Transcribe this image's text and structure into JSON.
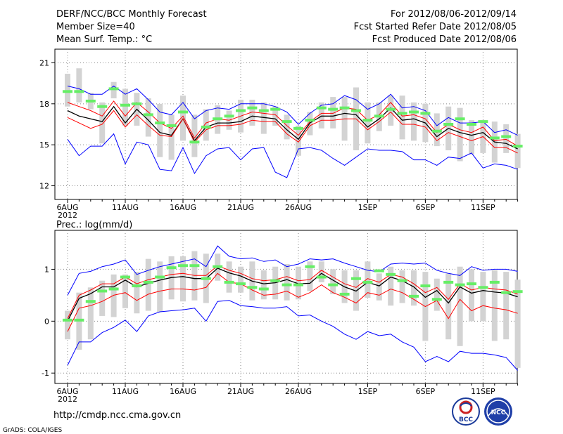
{
  "header": {
    "title": "DERF/NCC/BCC Monthly Forecast",
    "member_size": "Member Size=40",
    "variable": "Mean Surf. Temp.: °C",
    "period": "For 2012/08/06-2012/09/14",
    "refer_date": "Fcst Started Refer Date 2012/08/05",
    "produced_date": "Fcst Produced Date 2012/08/06"
  },
  "footer": {
    "url": "http://cmdp.ncc.cma.gov.cn",
    "grads": "GrADS: COLA/IGES",
    "logo_bcc": "BCC",
    "logo_ncc": "NCC"
  },
  "colors": {
    "max_min": "#0000ff",
    "mean": "#000000",
    "spread": "#ff0000",
    "box": "#d3d3d3",
    "obs": "#66ee66",
    "grid": "#8a8a8a"
  },
  "chart_data": [
    {
      "type": "line",
      "title": "Mean Surf. Temp.: °C",
      "x": [
        1,
        2,
        3,
        4,
        5,
        6,
        7,
        8,
        9,
        10,
        11,
        12,
        13,
        14,
        15,
        16,
        17,
        18,
        19,
        20,
        21,
        22,
        23,
        24,
        25,
        26,
        27,
        28,
        29,
        30,
        31,
        32,
        33,
        34,
        35,
        36,
        37,
        38,
        39,
        40
      ],
      "xtick_labels": [
        "6AUG",
        "11AUG",
        "16AUG",
        "21AUG",
        "26AUG",
        "1SEP",
        "6SEP",
        "11SEP"
      ],
      "xtick_positions": [
        1,
        6,
        11,
        16,
        21,
        27,
        32,
        37
      ],
      "year_label": "2012",
      "ylim": [
        11,
        22
      ],
      "yticks": [
        12,
        15,
        18,
        21
      ],
      "series": [
        {
          "name": "max",
          "color": "#0000ff",
          "values": [
            19.3,
            19.1,
            18.7,
            18.7,
            19.3,
            18.7,
            19.1,
            18.3,
            17.4,
            17.2,
            18.1,
            16.9,
            17.5,
            17.7,
            17.6,
            18.0,
            18.0,
            18.0,
            17.8,
            17.4,
            16.5,
            17.3,
            17.9,
            18.0,
            18.6,
            18.3,
            17.6,
            18.0,
            18.7,
            17.7,
            17.8,
            17.5,
            16.4,
            17.0,
            16.6,
            16.6,
            16.7,
            15.9,
            16.1,
            15.7
          ]
        },
        {
          "name": "upper",
          "color": "#ff0000",
          "values": [
            18.1,
            17.8,
            17.5,
            17.1,
            18.2,
            17.1,
            18.1,
            17.4,
            16.6,
            16.2,
            17.1,
            15.5,
            16.6,
            16.9,
            16.8,
            17.1,
            17.4,
            17.3,
            17.2,
            16.4,
            15.7,
            16.7,
            17.3,
            17.3,
            17.7,
            17.6,
            16.8,
            17.2,
            18.1,
            17.1,
            17.2,
            16.9,
            15.9,
            16.5,
            16.1,
            15.9,
            16.3,
            15.3,
            15.4,
            14.9
          ]
        },
        {
          "name": "mean",
          "color": "#000000",
          "values": [
            17.5,
            17.1,
            16.9,
            16.7,
            17.8,
            16.6,
            17.6,
            16.8,
            15.9,
            15.7,
            16.9,
            15.3,
            16.3,
            16.6,
            16.6,
            16.7,
            17.1,
            17.0,
            16.9,
            16.1,
            15.4,
            16.6,
            17.1,
            17.1,
            17.3,
            17.2,
            16.3,
            16.9,
            17.7,
            16.8,
            16.9,
            16.6,
            15.6,
            16.2,
            15.9,
            15.7,
            15.9,
            15.2,
            15.1,
            14.7
          ]
        },
        {
          "name": "lower",
          "color": "#ff0000",
          "values": [
            17.0,
            16.6,
            16.2,
            16.5,
            17.5,
            16.3,
            17.2,
            16.4,
            15.7,
            15.6,
            16.9,
            15.2,
            16.1,
            16.4,
            16.4,
            16.5,
            16.8,
            16.7,
            16.7,
            15.8,
            15.2,
            16.4,
            16.8,
            16.8,
            16.9,
            16.9,
            16.1,
            16.7,
            17.4,
            16.5,
            16.5,
            16.3,
            15.3,
            15.9,
            15.6,
            15.3,
            15.6,
            14.8,
            14.8,
            14.4
          ]
        },
        {
          "name": "min",
          "color": "#0000ff",
          "values": [
            15.4,
            14.2,
            14.9,
            14.9,
            15.8,
            13.6,
            15.2,
            15.0,
            13.2,
            13.1,
            14.8,
            12.9,
            14.2,
            14.7,
            14.8,
            13.9,
            14.7,
            14.8,
            13.0,
            12.6,
            14.7,
            14.8,
            14.6,
            14.0,
            13.5,
            14.1,
            14.7,
            14.6,
            14.6,
            14.5,
            13.9,
            13.9,
            13.5,
            14.1,
            14.0,
            14.4,
            13.3,
            13.6,
            13.5,
            13.2
          ]
        }
      ],
      "boxes": [
        [
          17.8,
          20.2
        ],
        [
          18.1,
          20.6
        ],
        [
          17.6,
          18.8
        ],
        [
          15.1,
          18.1
        ],
        [
          18.4,
          19.6
        ],
        [
          16.4,
          19.1
        ],
        [
          16.4,
          18.8
        ],
        [
          15.6,
          18.4
        ],
        [
          14.1,
          18.0
        ],
        [
          13.9,
          17.2
        ],
        [
          15.3,
          18.6
        ],
        [
          14.1,
          17.2
        ],
        [
          15.3,
          17.6
        ],
        [
          15.8,
          17.9
        ],
        [
          16.1,
          17.5
        ],
        [
          15.9,
          18.3
        ],
        [
          16.4,
          18.3
        ],
        [
          15.8,
          18.1
        ],
        [
          16.4,
          17.8
        ],
        [
          15.4,
          17.2
        ],
        [
          14.2,
          16.4
        ],
        [
          15.7,
          17.4
        ],
        [
          16.2,
          18.1
        ],
        [
          16.2,
          18.5
        ],
        [
          15.3,
          18.5
        ],
        [
          14.6,
          19.2
        ],
        [
          15.1,
          18.1
        ],
        [
          16.0,
          18.1
        ],
        [
          16.4,
          18.6
        ],
        [
          15.4,
          18.6
        ],
        [
          15.3,
          18.1
        ],
        [
          15.2,
          18.0
        ],
        [
          14.9,
          17.3
        ],
        [
          14.6,
          17.8
        ],
        [
          13.8,
          17.7
        ],
        [
          14.3,
          16.8
        ],
        [
          14.4,
          16.7
        ],
        [
          13.7,
          16.7
        ],
        [
          14.4,
          16.5
        ],
        [
          13.3,
          15.8
        ]
      ],
      "observed": [
        18.9,
        18.9,
        18.2,
        17.8,
        19.1,
        17.9,
        18.0,
        17.2,
        16.6,
        16.4,
        17.4,
        15.2,
        16.3,
        16.9,
        17.1,
        17.5,
        17.7,
        17.5,
        17.6,
        16.7,
        16.2,
        16.8,
        17.7,
        17.6,
        17.7,
        17.5,
        16.8,
        17.1,
        17.6,
        17.3,
        17.4,
        17.3,
        16.0,
        16.5,
        16.9,
        16.5,
        16.7,
        15.5,
        15.6,
        14.9
      ]
    },
    {
      "type": "line",
      "title": "Prec.: log(mm/d)",
      "x": [
        1,
        2,
        3,
        4,
        5,
        6,
        7,
        8,
        9,
        10,
        11,
        12,
        13,
        14,
        15,
        16,
        17,
        18,
        19,
        20,
        21,
        22,
        23,
        24,
        25,
        26,
        27,
        28,
        29,
        30,
        31,
        32,
        33,
        34,
        35,
        36,
        37,
        38,
        39,
        40
      ],
      "xtick_labels": [
        "6AUG",
        "11AUG",
        "16AUG",
        "21AUG",
        "26AUG",
        "1SEP",
        "6SEP",
        "11SEP"
      ],
      "xtick_positions": [
        1,
        6,
        11,
        16,
        21,
        27,
        32,
        37
      ],
      "year_label": "2012",
      "ylim": [
        -1.2,
        1.75
      ],
      "yticks": [
        -1,
        0,
        1
      ],
      "series": [
        {
          "name": "max",
          "color": "#0000ff",
          "values": [
            0.5,
            0.92,
            0.96,
            1.05,
            1.1,
            1.18,
            0.9,
            0.98,
            1.05,
            1.1,
            1.15,
            1.2,
            1.05,
            1.45,
            1.25,
            1.2,
            1.22,
            1.15,
            1.18,
            1.05,
            1.1,
            1.2,
            1.18,
            1.2,
            1.12,
            1.05,
            0.98,
            0.95,
            1.1,
            1.12,
            1.1,
            1.12,
            0.98,
            0.92,
            0.88,
            1.05,
            0.98,
            1.0,
            1.0,
            0.96
          ]
        },
        {
          "name": "upper",
          "color": "#ff0000",
          "values": [
            0.05,
            0.5,
            0.6,
            0.72,
            0.72,
            0.85,
            0.72,
            0.8,
            0.85,
            0.9,
            0.92,
            0.88,
            0.88,
            1.07,
            0.98,
            0.92,
            0.82,
            0.78,
            0.8,
            0.86,
            0.78,
            0.8,
            0.98,
            0.85,
            0.72,
            0.65,
            0.82,
            0.75,
            0.9,
            0.85,
            0.72,
            0.55,
            0.65,
            0.42,
            0.72,
            0.6,
            0.65,
            0.62,
            0.6,
            0.52
          ]
        },
        {
          "name": "mean",
          "color": "#000000",
          "values": [
            0.0,
            0.44,
            0.53,
            0.66,
            0.66,
            0.79,
            0.66,
            0.73,
            0.79,
            0.84,
            0.86,
            0.82,
            0.82,
            1.02,
            0.93,
            0.87,
            0.77,
            0.72,
            0.74,
            0.8,
            0.72,
            0.73,
            0.92,
            0.79,
            0.66,
            0.58,
            0.75,
            0.68,
            0.85,
            0.78,
            0.66,
            0.46,
            0.59,
            0.35,
            0.66,
            0.54,
            0.59,
            0.56,
            0.54,
            0.47
          ]
        },
        {
          "name": "lower",
          "color": "#ff0000",
          "values": [
            -0.2,
            0.25,
            0.3,
            0.38,
            0.5,
            0.55,
            0.4,
            0.52,
            0.58,
            0.62,
            0.62,
            0.6,
            0.65,
            0.92,
            0.75,
            0.72,
            0.6,
            0.5,
            0.52,
            0.58,
            0.46,
            0.55,
            0.7,
            0.55,
            0.46,
            0.35,
            0.55,
            0.5,
            0.62,
            0.55,
            0.42,
            0.28,
            0.4,
            0.05,
            0.42,
            0.2,
            0.3,
            0.25,
            0.22,
            0.15
          ]
        },
        {
          "name": "min",
          "color": "#0000ff",
          "values": [
            -0.85,
            -0.4,
            -0.4,
            -0.22,
            -0.12,
            0.02,
            -0.2,
            0.1,
            0.18,
            0.2,
            0.22,
            0.25,
            0.0,
            0.38,
            0.4,
            0.3,
            0.28,
            0.25,
            0.25,
            0.28,
            0.1,
            0.12,
            0.0,
            -0.1,
            -0.25,
            -0.35,
            -0.2,
            -0.28,
            -0.25,
            -0.4,
            -0.5,
            -0.78,
            -0.68,
            -0.78,
            -0.58,
            -0.62,
            -0.62,
            -0.65,
            -0.7,
            -0.95
          ]
        }
      ],
      "boxes": [
        [
          -0.35,
          0.2
        ],
        [
          -0.55,
          0.55
        ],
        [
          -0.35,
          0.65
        ],
        [
          0.1,
          0.78
        ],
        [
          0.08,
          0.9
        ],
        [
          0.25,
          0.9
        ],
        [
          0.15,
          0.95
        ],
        [
          0.2,
          1.2
        ],
        [
          0.18,
          1.15
        ],
        [
          0.42,
          1.25
        ],
        [
          0.38,
          1.25
        ],
        [
          0.4,
          1.35
        ],
        [
          0.35,
          1.3
        ],
        [
          0.78,
          1.3
        ],
        [
          0.55,
          1.15
        ],
        [
          0.55,
          1.05
        ],
        [
          0.4,
          1.15
        ],
        [
          0.42,
          0.98
        ],
        [
          0.42,
          1.05
        ],
        [
          0.4,
          1.1
        ],
        [
          0.42,
          1.05
        ],
        [
          0.58,
          1.15
        ],
        [
          0.75,
          1.15
        ],
        [
          0.52,
          1.0
        ],
        [
          0.35,
          0.98
        ],
        [
          0.2,
          0.98
        ],
        [
          0.45,
          1.15
        ],
        [
          0.4,
          0.92
        ],
        [
          0.3,
          1.05
        ],
        [
          0.35,
          0.98
        ],
        [
          0.3,
          0.98
        ],
        [
          -0.38,
          0.95
        ],
        [
          0.2,
          0.82
        ],
        [
          -0.35,
          0.92
        ],
        [
          -0.48,
          1.05
        ],
        [
          0.0,
          1.0
        ],
        [
          0.0,
          0.95
        ],
        [
          -0.38,
          0.98
        ],
        [
          -0.35,
          0.95
        ],
        [
          -0.9,
          0.8
        ]
      ],
      "observed": [
        0.02,
        0.02,
        0.38,
        0.58,
        0.62,
        0.85,
        0.68,
        0.75,
        0.85,
        1.03,
        1.07,
        1.07,
        0.82,
        1.05,
        0.75,
        0.72,
        0.65,
        0.62,
        0.78,
        0.7,
        0.7,
        1.05,
        0.85,
        0.7,
        0.52,
        0.82,
        0.75,
        0.97,
        0.9,
        0.78,
        0.48,
        0.68,
        0.42,
        0.75,
        0.7,
        0.72,
        0.65,
        0.75,
        0.55,
        0.57
      ]
    }
  ]
}
